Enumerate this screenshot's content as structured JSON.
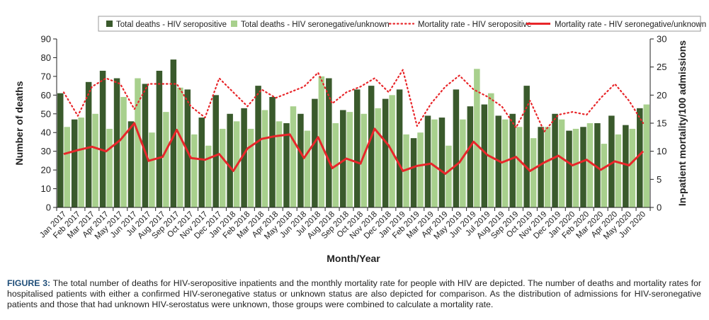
{
  "chart_data": {
    "type": "bar",
    "categories": [
      "Jan 2017",
      "Feb 2017",
      "Mar 2017",
      "Apr 2017",
      "May 2017",
      "Jun 2017",
      "Jul 2017",
      "Aug 2017",
      "Sep 2017",
      "Oct 2017",
      "Nov 2017",
      "Dec 2017",
      "Jan 2018",
      "Feb 2018",
      "Mar 2018",
      "Apr 2018",
      "May 2018",
      "Jun 2018",
      "Jul 2018",
      "Aug 2018",
      "Sep 2018",
      "Oct 2018",
      "Nov 2018",
      "Dec 2018",
      "Jan 2019",
      "Feb 2019",
      "Mar 2019",
      "Apr 2019",
      "May 2019",
      "Jun 2019",
      "Jul 2019",
      "Aug 2019",
      "Sep 2019",
      "Oct 2019",
      "Nov 2019",
      "Dec 2019",
      "Jan 2020",
      "Feb 2020",
      "Mar 2020",
      "Apr 2020",
      "May 2020",
      "Jun 2020"
    ],
    "series": [
      {
        "name": "Total deaths - HIV seropositive",
        "kind": "bar",
        "axis": "left",
        "color": "#3a5a2c",
        "values": [
          61,
          47,
          67,
          73,
          69,
          46,
          66,
          73,
          79,
          63,
          48,
          60,
          50,
          53,
          65,
          59,
          45,
          50,
          58,
          69,
          52,
          63,
          65,
          58,
          63,
          37,
          49,
          48,
          63,
          54,
          55,
          49,
          50,
          65,
          43,
          50,
          41,
          43,
          45,
          49,
          44,
          53
        ]
      },
      {
        "name": "Total deaths - HIV seronegative/unknown",
        "kind": "bar",
        "axis": "left",
        "color": "#a8d08d",
        "values": [
          43,
          48,
          50,
          42,
          59,
          69,
          40,
          51,
          64,
          39,
          33,
          42,
          46,
          42,
          52,
          46,
          54,
          41,
          70,
          45,
          51,
          50,
          53,
          60,
          39,
          40,
          47,
          33,
          47,
          74,
          61,
          47,
          43,
          37,
          43,
          47,
          42,
          45,
          34,
          39,
          42,
          55
        ]
      },
      {
        "name": "Mortality rate - HIV seropositive",
        "kind": "dotted-line",
        "axis": "right",
        "color": "#e8262a",
        "values": [
          20.5,
          16.3,
          21.5,
          23,
          22,
          17.5,
          22,
          22,
          22,
          18,
          16,
          23,
          20.5,
          18,
          21,
          19.5,
          20.5,
          21.5,
          24,
          18.5,
          20.5,
          21.5,
          23,
          20.5,
          24.5,
          14.5,
          18.5,
          21.5,
          23.5,
          21,
          19.7,
          18,
          14.2,
          19,
          13.5,
          16.5,
          17,
          16.5,
          19.5,
          22,
          19,
          15
        ]
      },
      {
        "name": "Mortality rate - HIV seronegative/unknown",
        "kind": "line",
        "axis": "right",
        "color": "#e8262a",
        "values": [
          9.5,
          10.2,
          10.8,
          10,
          12,
          15,
          8.3,
          9,
          13.8,
          8.8,
          8.5,
          9.5,
          6.5,
          10.5,
          12.2,
          12.7,
          13,
          8.8,
          12.5,
          7,
          8.7,
          7.8,
          14,
          11,
          6.5,
          7.4,
          7.8,
          6,
          8,
          11.7,
          9.3,
          8,
          9,
          6.5,
          8,
          9.2,
          7.5,
          8.5,
          6.7,
          8.2,
          7.5,
          10
        ]
      }
    ],
    "xlabel": "Month/Year",
    "ylabel": "Number of deaths",
    "ylabel_right": "In-patient mortality/100 admissions",
    "ylim": [
      0,
      90
    ],
    "yticks": [
      "0",
      "10",
      "20",
      "30",
      "40",
      "50",
      "60",
      "70",
      "80",
      "90"
    ],
    "ylim_right": [
      0,
      30
    ],
    "yticks_right": [
      "0",
      "5",
      "10",
      "15",
      "20",
      "25",
      "30"
    ],
    "legend": "top",
    "grid": false
  },
  "caption": {
    "label": "FIGURE 3:",
    "text": " The total number of deaths for HIV-seropositive inpatients and the monthly mortality rate for people with HIV are depicted. The number of deaths and mortality rates for hospitalised patients with either a confirmed HIV-seronegative status or unknown status are also depicted for comparison. As the distribution of admissions for HIV-seronegative patients and those that had unknown HIV-serostatus were unknown, those groups were combined to calculate a mortality rate."
  }
}
